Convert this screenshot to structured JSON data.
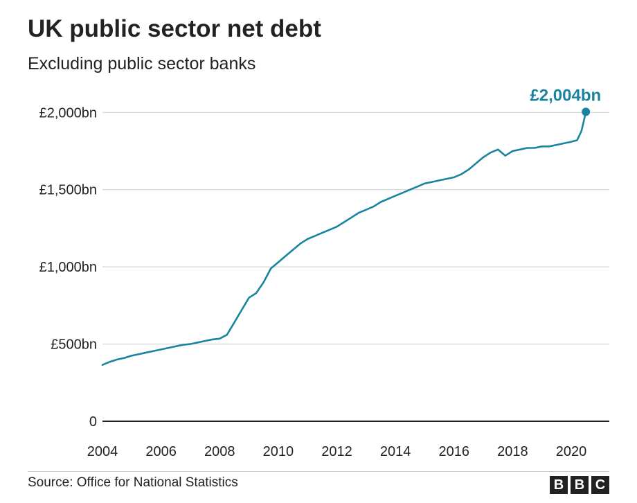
{
  "title": "UK public sector net debt",
  "subtitle": "Excluding public sector banks",
  "source": "Source: Office for National Statistics",
  "logo": {
    "letters": [
      "B",
      "B",
      "C"
    ]
  },
  "colors": {
    "series": "#1a83a0",
    "grid": "#cccccc",
    "text": "#222222"
  },
  "chart_data": {
    "type": "line",
    "title": "UK public sector net debt",
    "subtitle": "Excluding public sector banks",
    "xlabel": "",
    "ylabel": "",
    "xlim": [
      2004,
      2021.3
    ],
    "ylim": [
      0,
      2100
    ],
    "x_ticks": [
      2004,
      2006,
      2008,
      2010,
      2012,
      2014,
      2016,
      2018,
      2020
    ],
    "x_tick_labels": [
      "2004",
      "2006",
      "2008",
      "2010",
      "2012",
      "2014",
      "2016",
      "2018",
      "2020"
    ],
    "y_ticks": [
      0,
      500,
      1000,
      1500,
      2000
    ],
    "y_tick_labels": [
      "0",
      "£500bn",
      "£1,000bn",
      "£1,500bn",
      "£2,000bn"
    ],
    "grid": true,
    "series": [
      {
        "color": "#1a83a0",
        "x": [
          2004.0,
          2004.25,
          2004.5,
          2004.75,
          2005.0,
          2005.25,
          2005.5,
          2005.75,
          2006.0,
          2006.25,
          2006.5,
          2006.75,
          2007.0,
          2007.25,
          2007.5,
          2007.75,
          2008.0,
          2008.25,
          2008.5,
          2008.75,
          2009.0,
          2009.25,
          2009.5,
          2009.75,
          2010.0,
          2010.25,
          2010.5,
          2010.75,
          2011.0,
          2011.25,
          2011.5,
          2011.75,
          2012.0,
          2012.25,
          2012.5,
          2012.75,
          2013.0,
          2013.25,
          2013.5,
          2013.75,
          2014.0,
          2014.25,
          2014.5,
          2014.75,
          2015.0,
          2015.25,
          2015.5,
          2015.75,
          2016.0,
          2016.25,
          2016.5,
          2016.75,
          2017.0,
          2017.25,
          2017.5,
          2017.75,
          2018.0,
          2018.25,
          2018.5,
          2018.75,
          2019.0,
          2019.25,
          2019.5,
          2019.75,
          2020.0,
          2020.2,
          2020.35,
          2020.5
        ],
        "values": [
          365,
          385,
          400,
          410,
          425,
          435,
          445,
          455,
          465,
          475,
          485,
          495,
          500,
          510,
          520,
          530,
          535,
          560,
          640,
          720,
          800,
          830,
          900,
          990,
          1030,
          1070,
          1110,
          1150,
          1180,
          1200,
          1220,
          1240,
          1260,
          1290,
          1320,
          1350,
          1370,
          1390,
          1420,
          1440,
          1460,
          1480,
          1500,
          1520,
          1540,
          1550,
          1560,
          1570,
          1580,
          1600,
          1630,
          1670,
          1710,
          1740,
          1760,
          1720,
          1750,
          1760,
          1770,
          1770,
          1780,
          1780,
          1790,
          1800,
          1810,
          1820,
          1880,
          2004
        ]
      }
    ],
    "annotations": [
      {
        "label": "£2,004bn",
        "x": 2020.5,
        "y": 2004
      }
    ]
  }
}
